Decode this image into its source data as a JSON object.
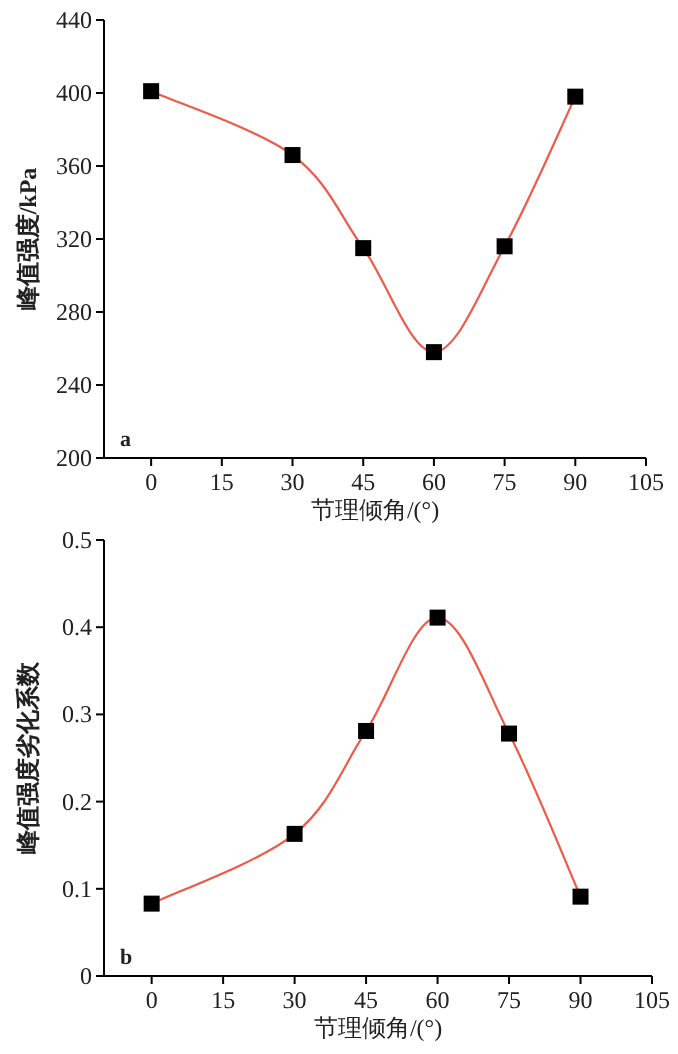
{
  "chart_data": [
    {
      "type": "line",
      "xlabel": "节理倾角/(°)",
      "ylabel": "峰值强度/kPa",
      "annotations": [
        "a"
      ],
      "x": [
        0,
        30,
        45,
        60,
        75,
        90
      ],
      "series": [
        {
          "color": "#ee5a48",
          "colors": [
            "#000000",
            "#000000",
            "#000000",
            "#000000",
            "#000000",
            "#000000"
          ],
          "values": [
            401,
            366,
            315,
            258,
            316,
            398
          ]
        }
      ],
      "xlim": [
        -10,
        105
      ],
      "ylim": [
        200,
        440
      ],
      "xticks": [
        0,
        15,
        30,
        45,
        60,
        75,
        90,
        105
      ],
      "yticks": [
        200,
        240,
        280,
        320,
        360,
        400,
        440
      ],
      "grid": false,
      "marker": "square",
      "line_style": "solid"
    },
    {
      "type": "line",
      "xlabel": "节理倾角/(°)",
      "ylabel": "峰值强度劣化系数",
      "annotations": [
        "b"
      ],
      "x": [
        0,
        30,
        45,
        60,
        75,
        90
      ],
      "series": [
        {
          "color": "#ee5a48",
          "colors": [
            "#000000",
            "#000000",
            "#000000",
            "#000000",
            "#000000",
            "#000000"
          ],
          "values": [
            0.083,
            0.163,
            0.281,
            0.411,
            0.278,
            0.091
          ]
        }
      ],
      "xlim": [
        -10,
        105
      ],
      "ylim": [
        0,
        0.5
      ],
      "xticks": [
        0,
        15,
        30,
        45,
        60,
        75,
        90,
        105
      ],
      "yticks": [
        0,
        0.1,
        0.2,
        0.3,
        0.4,
        0.5
      ],
      "grid": false,
      "marker": "square",
      "line_style": "solid"
    }
  ]
}
